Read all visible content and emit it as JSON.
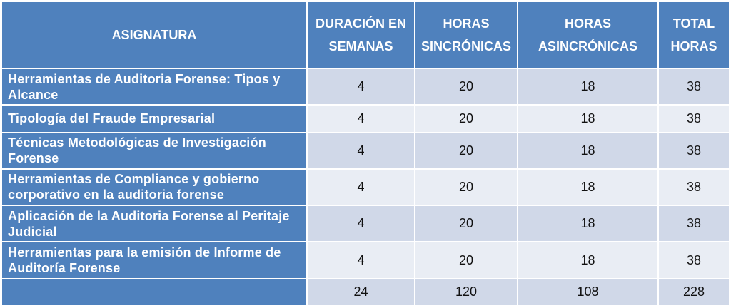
{
  "header": {
    "asignatura": "ASIGNATURA",
    "duracion": [
      "DURACIÓN EN",
      "SEMANAS"
    ],
    "sincronicas": [
      "HORAS",
      "SINCRÓNICAS"
    ],
    "asincronicas": [
      "HORAS",
      "ASINCRÓNICAS"
    ],
    "total": [
      "TOTAL",
      "HORAS"
    ]
  },
  "rows": [
    {
      "name": "Herramientas de Auditoria Forense: Tipos y Alcance",
      "semanas": "4",
      "sincronicas": "20",
      "asincronicas": "18",
      "total": "38"
    },
    {
      "name": "Tipología del Fraude Empresarial",
      "semanas": "4",
      "sincronicas": "20",
      "asincronicas": "18",
      "total": "38"
    },
    {
      "name": "Técnicas Metodológicas de Investigación Forense",
      "semanas": "4",
      "sincronicas": "20",
      "asincronicas": "18",
      "total": "38"
    },
    {
      "name": "Herramientas de Compliance y gobierno corporativo en la auditoria forense",
      "semanas": "4",
      "sincronicas": "20",
      "asincronicas": "18",
      "total": "38"
    },
    {
      "name": "Aplicación de la Auditoria Forense al Peritaje Judicial",
      "semanas": "4",
      "sincronicas": "20",
      "asincronicas": "18",
      "total": "38"
    },
    {
      "name": "Herramientas para la emisión de Informe de Auditoría Forense",
      "semanas": "4",
      "sincronicas": "20",
      "asincronicas": "18",
      "total": "38"
    }
  ],
  "totals": {
    "semanas": "24",
    "sincronicas": "120",
    "asincronicas": "108",
    "total": "228"
  },
  "colors": {
    "header_bg": "#4f81bd",
    "cell_bg": "#d0d8e8",
    "cell_bg_alt": "#e9edf4"
  }
}
